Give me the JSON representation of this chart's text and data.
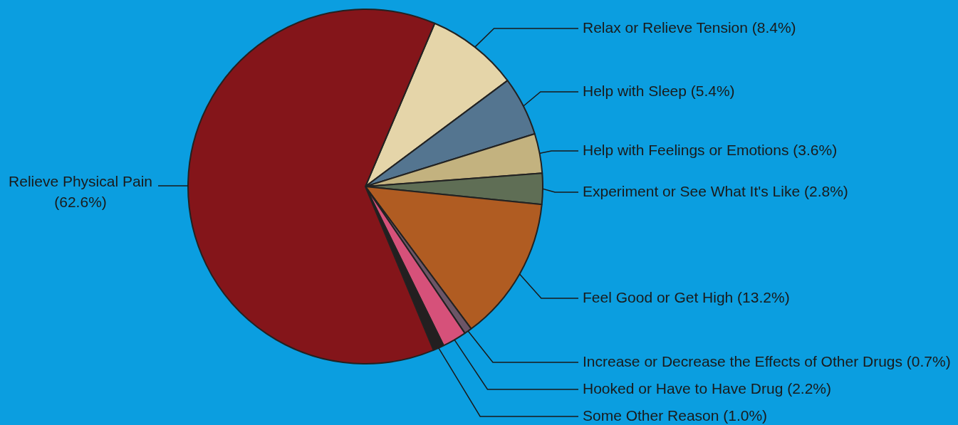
{
  "chart_data": {
    "type": "pie",
    "categories": [
      "Relax or Relieve Tension",
      "Help with Sleep",
      "Help with Feelings or Emotions",
      "Experiment or See What It's Like",
      "Feel Good or Get High",
      "Increase or Decrease the Effects of Other Drugs",
      "Hooked or Have to Have Drug",
      "Some Other Reason",
      "Relieve Physical Pain"
    ],
    "values": [
      8.4,
      5.4,
      3.6,
      2.8,
      13.2,
      0.7,
      2.2,
      1.0,
      62.6
    ],
    "colors": [
      "#e5d5a9",
      "#547590",
      "#c3b27f",
      "#5f6e55",
      "#b05c22",
      "#6c5566",
      "#d6517a",
      "#231f20",
      "#84151a"
    ],
    "value_labels": [
      "(8.4%)",
      "(5.4%)",
      "(3.6%)",
      "(2.8%)",
      "(13.2%)",
      "(0.7%)",
      "(2.2%)",
      "(1.0%)",
      "(62.6%)"
    ],
    "legend": false
  }
}
